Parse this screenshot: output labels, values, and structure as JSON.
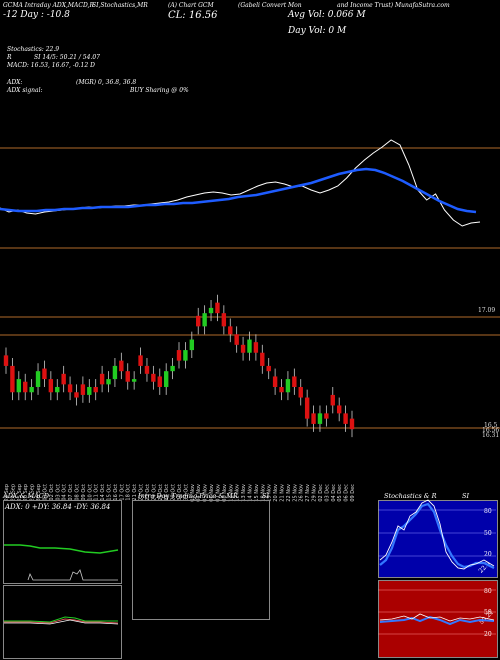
{
  "header": {
    "line1_left": "GCMA Intraday ADX,MACD,R",
    "line1_mid": "SI,Stochastics,MR",
    "line1_ticker": "(A) Chart GCM",
    "line1_desc": "(Gabeli Convert Mon",
    "line1_desc2": "and Income Trust) MunafaSutra.com",
    "day_change": "-12  Day : -10.8",
    "close_label": "CL: 16.56",
    "avg_vol": "Avg Vol: 0.066  M",
    "day_vol": "Day Vol: 0   M"
  },
  "stats": {
    "stochastics": "Stochastics: 22.9",
    "r": "R",
    "si": "SI 14/5: 50.21 / 54.07",
    "macd": "MACD: 16.53,  16.67, -0.12  D",
    "adx": "ADX:",
    "adx_vals": "(MGR) 0,  36.8,  36.8",
    "adx_signal": "ADX  signal:",
    "buy_signal": "BUY Sharing @ 0%"
  },
  "price_labels": {
    "p1": "17.09",
    "p2": "16.5",
    "p3": "16.56",
    "p4": "16.31"
  },
  "dates": [
    "23 Sep",
    "24 Sep",
    "25 Sep",
    "26 Sep",
    "27 Sep",
    "30 Sep",
    "01 Oct",
    "02 Oct",
    "03 Oct",
    "04 Oct",
    "07 Oct",
    "08 Oct",
    "09 Oct",
    "10 Oct",
    "11 Oct",
    "14 Oct",
    "15 Oct",
    "16 Oct",
    "17 Oct",
    "18 Oct",
    "21 Oct",
    "22 Oct",
    "23 Oct",
    "24 Oct",
    "25 Oct",
    "28 Oct",
    "29 Oct",
    "30 Oct",
    "31 Oct",
    "01 Nov",
    "04 Nov",
    "05 Nov",
    "06 Nov",
    "07 Nov",
    "08 Nov",
    "11 Nov",
    "12 Nov",
    "13 Nov",
    "14 Nov",
    "15 Nov",
    "18 Nov",
    "19 Nov",
    "20 Nov",
    "21 Nov",
    "22 Nov",
    "25 Nov",
    "26 Nov",
    "27 Nov",
    "29 Nov",
    "02 Dec",
    "03 Dec",
    "04 Dec",
    "05 Dec",
    "06 Dec",
    "09 Dec"
  ],
  "panels": {
    "adx_title": "ADX  & MACD",
    "adx_readout": "ADX: 0  +DY: 36.84  -DY: 36.84",
    "intraday_title": "Intra  Day Trading Price  & MR",
    "intraday_si": "SI",
    "stoch_title": "Stochastics & R",
    "stoch_si": "SI",
    "stoch_levels": [
      "80",
      "50",
      "20"
    ],
    "rsi_levels": [
      "80",
      "50",
      "20"
    ],
    "stoch_value": "22.9",
    "rsi_value": "50.21"
  },
  "colors": {
    "bull": "#22cc22",
    "bear": "#dd1111",
    "ma": "#1e5cff",
    "line": "#ffffff",
    "hline": "#b06a2a",
    "rsi_bg": "#aa0000",
    "stoch_bg": "#0000aa"
  },
  "chart_data": {
    "type": "candlestick",
    "series": [
      {
        "name": "price",
        "values": [
          16.8,
          16.7,
          16.75,
          16.7,
          16.72,
          16.78,
          16.75,
          16.7,
          16.72,
          16.73,
          16.7,
          16.68,
          16.69,
          16.72,
          16.7,
          16.73,
          16.75,
          16.8,
          16.78,
          16.74,
          16.75,
          16.8,
          16.77,
          16.74,
          16.72,
          16.78,
          16.8,
          16.82,
          16.86,
          16.9,
          16.95,
          17.0,
          17.02,
          17.0,
          16.95,
          16.92,
          16.88,
          16.85,
          16.9,
          16.85,
          16.8,
          16.78,
          16.72,
          16.7,
          16.75,
          16.72,
          16.68,
          16.6,
          16.58,
          16.62,
          16.6,
          16.65,
          16.62,
          16.58,
          16.56
        ]
      }
    ]
  }
}
